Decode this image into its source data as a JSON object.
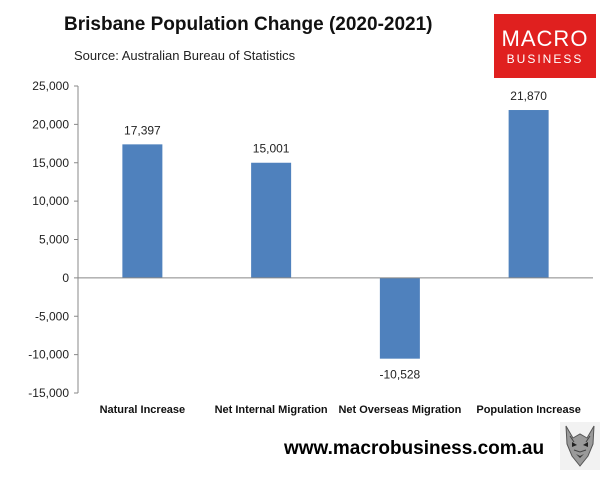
{
  "header": {
    "title": "Brisbane Population Change (2020-2021)",
    "source": "Source: Australian Bureau of Statistics"
  },
  "logo": {
    "line1": "MACRO",
    "line2": "BUSINESS",
    "color": "#e0201f"
  },
  "footer": {
    "url": "www.macrobusiness.com.au",
    "icon": "wolf-logo-icon"
  },
  "chart_data": {
    "type": "bar",
    "categories": [
      "Natural Increase",
      "Net Internal Migration",
      "Net Overseas Migration",
      "Population Increase"
    ],
    "values": [
      17397,
      15001,
      -10528,
      21870
    ],
    "data_labels": [
      "17,397",
      "15,001",
      "-10,528",
      "21,870"
    ],
    "ylim": [
      -15000,
      25000
    ],
    "yticks": [
      25000,
      20000,
      15000,
      10000,
      5000,
      0,
      -5000,
      -10000,
      -15000
    ],
    "ytick_labels": [
      "25,000",
      "20,000",
      "15,000",
      "10,000",
      "5,000",
      "0",
      "-5,000",
      "-10,000",
      "-15,000"
    ],
    "grid": false,
    "bar_color": "#4f81bd"
  }
}
